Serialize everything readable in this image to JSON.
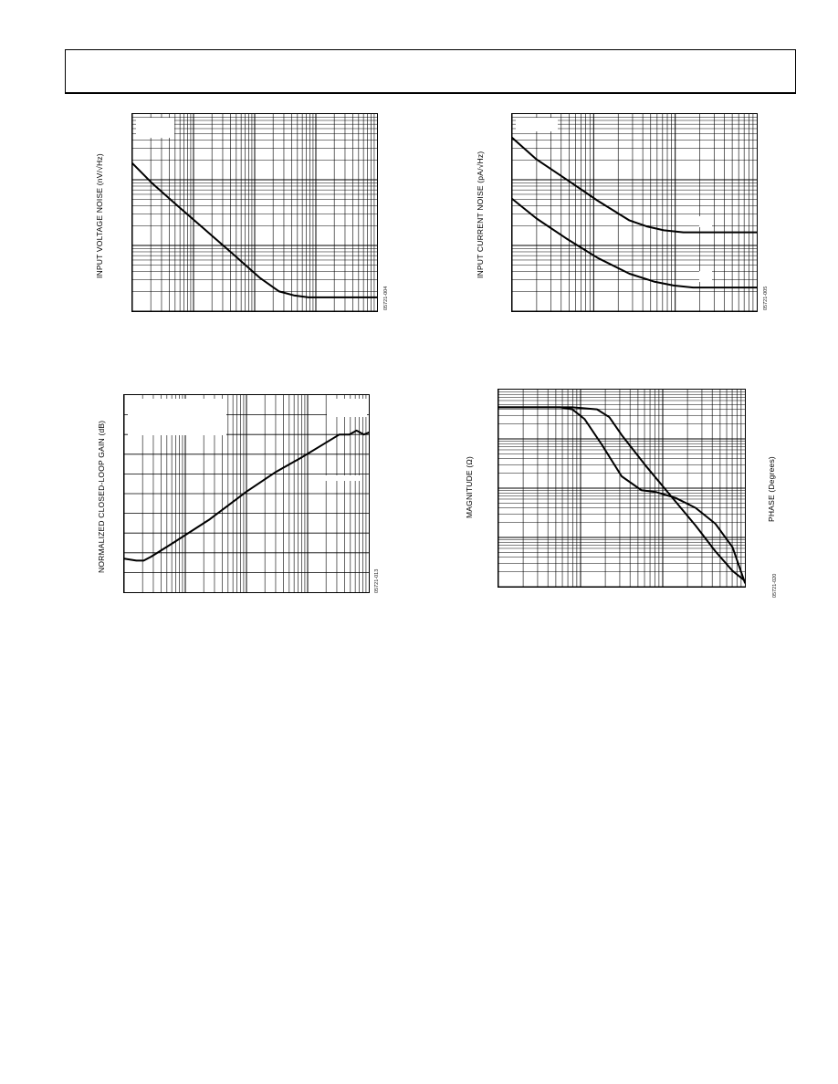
{
  "page": {
    "header_title": ""
  },
  "figures": [
    {
      "id": "fig-input-voltage-noise",
      "ylabel": "INPUT VOLTAGE NOISE (nV/√Hz)",
      "fig_code": "05721-004"
    },
    {
      "id": "fig-input-current-noise",
      "ylabel": "INPUT CURRENT NOISE (pA/√Hz)",
      "fig_code": "05721-005"
    },
    {
      "id": "fig-closed-loop-gain",
      "ylabel": "NORMALIZED CLOSED-LOOP GAIN (dB)",
      "fig_code": "05721-013"
    },
    {
      "id": "fig-magnitude-phase",
      "ylabel_left": "MAGNITUDE (Ω)",
      "ylabel_right": "PHASE (Degrees)",
      "fig_code": "05721-020"
    }
  ],
  "chart_data": [
    {
      "type": "line",
      "xscale": "log",
      "yscale": "log",
      "grid": true,
      "ylabel": "INPUT VOLTAGE NOISE (nV/√Hz)",
      "series": [
        {
          "x": [
            0,
            0.08,
            0.18,
            0.3,
            0.42,
            0.52,
            0.6,
            0.66,
            0.72,
            0.8,
            1.0
          ],
          "y": [
            0.75,
            0.65,
            0.54,
            0.41,
            0.28,
            0.17,
            0.1,
            0.08,
            0.07,
            0.07,
            0.07
          ]
        }
      ]
    },
    {
      "type": "line",
      "xscale": "log",
      "yscale": "log",
      "grid": true,
      "ylabel": "INPUT CURRENT NOISE (pA/√Hz)",
      "series": [
        {
          "x": [
            0,
            0.1,
            0.22,
            0.35,
            0.48,
            0.55,
            0.62,
            0.7,
            0.8,
            1.0
          ],
          "y": [
            0.88,
            0.77,
            0.67,
            0.56,
            0.46,
            0.43,
            0.41,
            0.4,
            0.4,
            0.4
          ]
        },
        {
          "x": [
            0,
            0.1,
            0.22,
            0.35,
            0.48,
            0.58,
            0.66,
            0.74,
            0.82,
            1.0
          ],
          "y": [
            0.57,
            0.47,
            0.37,
            0.27,
            0.19,
            0.15,
            0.13,
            0.12,
            0.12,
            0.12
          ]
        }
      ]
    },
    {
      "type": "line",
      "xscale": "log",
      "grid": true,
      "ylabel": "NORMALIZED CLOSED-LOOP GAIN (dB)",
      "series": [
        {
          "x": [
            0,
            0.05,
            0.08,
            0.11,
            0.2,
            0.35,
            0.5,
            0.62,
            0.72,
            0.8,
            0.88,
            0.92,
            0.95,
            0.98,
            1.0
          ],
          "y": [
            0.17,
            0.16,
            0.16,
            0.18,
            0.25,
            0.37,
            0.51,
            0.61,
            0.68,
            0.74,
            0.8,
            0.8,
            0.82,
            0.8,
            0.81
          ]
        }
      ]
    },
    {
      "type": "line",
      "xscale": "log",
      "grid": true,
      "ylabel_left": "MAGNITUDE (Ω)",
      "ylabel_right": "PHASE (Degrees)",
      "series": [
        {
          "x": [
            0,
            0.25,
            0.3,
            0.35,
            0.42,
            0.5,
            0.58,
            0.64,
            0.72,
            0.8,
            0.88,
            0.95,
            1.0
          ],
          "y": [
            0.91,
            0.91,
            0.9,
            0.85,
            0.72,
            0.56,
            0.49,
            0.48,
            0.45,
            0.4,
            0.32,
            0.2,
            0.02
          ]
        },
        {
          "x": [
            0,
            0.3,
            0.4,
            0.45,
            0.5,
            0.6,
            0.7,
            0.8,
            0.88,
            0.95,
            1.0
          ],
          "y": [
            0.91,
            0.91,
            0.9,
            0.86,
            0.77,
            0.61,
            0.46,
            0.31,
            0.18,
            0.08,
            0.03
          ]
        }
      ]
    }
  ]
}
